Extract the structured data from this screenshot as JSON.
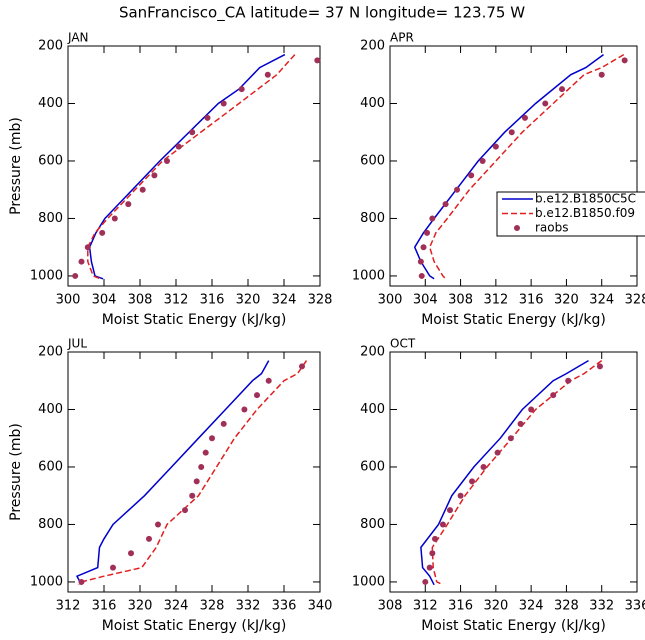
{
  "title": "SanFrancisco_CA  latitude= 37 N longitude= 123.75 W",
  "chart_data": [
    {
      "type": "line",
      "panel": "JAN",
      "xlabel": "Moist Static Energy (kJ/kg)",
      "ylabel": "Pressure (mb)",
      "xlim": [
        300,
        328
      ],
      "xticks": [
        300,
        304,
        308,
        312,
        316,
        320,
        324,
        328
      ],
      "ylim": [
        1035,
        200
      ],
      "yticks": [
        200,
        400,
        600,
        800,
        1000
      ],
      "series": [
        {
          "color": "#0000cc",
          "style": "solid",
          "levels": [
            230,
            275,
            350,
            400,
            600,
            800,
            850,
            900,
            950,
            1000,
            1010
          ],
          "values": [
            324.1,
            321.3,
            319,
            316.7,
            310.2,
            304.1,
            303.1,
            302.4,
            302.6,
            303,
            303.9
          ]
        },
        {
          "color": "#e02020",
          "style": "dashed",
          "levels": [
            230,
            300,
            400,
            600,
            800,
            850,
            900,
            950,
            1000,
            1010
          ],
          "values": [
            325.2,
            323.2,
            319,
            310.5,
            304.4,
            303,
            302.2,
            302.2,
            302.8,
            303.6
          ]
        },
        {
          "color": "#a03058",
          "style": "dots",
          "levels": [
            250,
            300,
            350,
            400,
            450,
            500,
            550,
            600,
            650,
            700,
            750,
            800,
            850,
            900,
            950,
            1000
          ],
          "values": [
            327.7,
            322.2,
            319.3,
            317.3,
            315.5,
            313.8,
            312.3,
            311,
            309.6,
            308.3,
            306.7,
            305.2,
            303.8,
            302.2,
            301.5,
            300.8
          ]
        }
      ]
    },
    {
      "type": "line",
      "panel": "APR",
      "xlabel": "Moist Static Energy (kJ/kg)",
      "xlim": [
        300,
        328
      ],
      "xticks": [
        300,
        304,
        308,
        312,
        316,
        320,
        324,
        328
      ],
      "ylim": [
        1035,
        200
      ],
      "yticks": [
        200,
        400,
        600,
        800,
        1000
      ],
      "legend": "right",
      "series": [
        {
          "name": "b.e12.B1850C5C",
          "color": "#0000cc",
          "style": "solid",
          "levels": [
            230,
            275,
            300,
            400,
            500,
            600,
            700,
            800,
            850,
            900,
            950,
            1000,
            1010
          ],
          "values": [
            324.2,
            322.2,
            320.5,
            316.5,
            313,
            310,
            307.5,
            305,
            303.8,
            302.8,
            303.5,
            304.5,
            305
          ]
        },
        {
          "name": "b.e12.B1850.f09",
          "color": "#e02020",
          "style": "dashed",
          "levels": [
            230,
            275,
            300,
            400,
            500,
            600,
            700,
            800,
            850,
            900,
            950,
            1000,
            1010
          ],
          "values": [
            326.5,
            324,
            322,
            318.5,
            315,
            312,
            309,
            306.5,
            305.2,
            304.5,
            305,
            306,
            306.3
          ]
        },
        {
          "name": "raobs",
          "color": "#a03058",
          "style": "dots",
          "levels": [
            250,
            300,
            350,
            400,
            450,
            500,
            550,
            600,
            650,
            700,
            750,
            800,
            850,
            900,
            950,
            1000
          ],
          "values": [
            326.6,
            324,
            319.5,
            317.6,
            315.3,
            313.8,
            312,
            310.5,
            309.2,
            307.6,
            306.3,
            304.8,
            304.2,
            303.8,
            303.5,
            303.6
          ]
        }
      ]
    },
    {
      "type": "line",
      "panel": "JUL",
      "xlabel": "Moist Static Energy (kJ/kg)",
      "ylabel": "Pressure (mb)",
      "xlim": [
        312,
        340
      ],
      "xticks": [
        312,
        316,
        320,
        324,
        328,
        332,
        336,
        340
      ],
      "ylim": [
        1035,
        200
      ],
      "yticks": [
        200,
        400,
        600,
        800,
        1000
      ],
      "series": [
        {
          "color": "#0000cc",
          "style": "solid",
          "levels": [
            230,
            275,
            300,
            400,
            500,
            600,
            700,
            800,
            850,
            880,
            950,
            980,
            1010
          ],
          "values": [
            334.3,
            333.5,
            332.5,
            329.5,
            326.5,
            323.5,
            320.5,
            317,
            316,
            315.5,
            315.3,
            313,
            313.5
          ]
        },
        {
          "color": "#e02020",
          "style": "dashed",
          "levels": [
            230,
            275,
            300,
            400,
            500,
            600,
            700,
            800,
            880,
            950,
            980,
            1000,
            1010
          ],
          "values": [
            338.5,
            337.5,
            336,
            333,
            330.5,
            328.5,
            326.5,
            323,
            321.8,
            320.2,
            316,
            313.5,
            313.2
          ]
        },
        {
          "color": "#a03058",
          "style": "dots",
          "levels": [
            250,
            300,
            350,
            400,
            450,
            500,
            550,
            600,
            650,
            700,
            750,
            800,
            850,
            900,
            950,
            1000
          ],
          "values": [
            338,
            334.3,
            333,
            331.6,
            329.3,
            328,
            327.3,
            326.8,
            326.3,
            325.8,
            325,
            322,
            321,
            319,
            317,
            313.5
          ]
        }
      ]
    },
    {
      "type": "line",
      "panel": "OCT",
      "xlabel": "Moist Static Energy (kJ/kg)",
      "xlim": [
        308,
        336
      ],
      "xticks": [
        308,
        312,
        316,
        320,
        324,
        328,
        332,
        336
      ],
      "ylim": [
        1035,
        200
      ],
      "yticks": [
        200,
        400,
        600,
        800,
        1000
      ],
      "series": [
        {
          "color": "#0000cc",
          "style": "solid",
          "levels": [
            230,
            275,
            300,
            400,
            500,
            600,
            700,
            800,
            880,
            950,
            980,
            1010
          ],
          "values": [
            330.5,
            328,
            326.5,
            323,
            320.5,
            317.5,
            315,
            313.5,
            311.5,
            311.7,
            312.5,
            313
          ]
        },
        {
          "color": "#e02020",
          "style": "dashed",
          "levels": [
            230,
            275,
            300,
            400,
            500,
            600,
            700,
            800,
            880,
            950,
            1000,
            1010
          ],
          "values": [
            332,
            330,
            328.5,
            324.5,
            321.8,
            319,
            316.5,
            314.5,
            312.8,
            312.9,
            313.3,
            314
          ]
        },
        {
          "color": "#a03058",
          "style": "dots",
          "levels": [
            250,
            300,
            350,
            400,
            450,
            500,
            550,
            600,
            650,
            700,
            750,
            800,
            850,
            900,
            950,
            1000
          ],
          "values": [
            331.8,
            328.2,
            326.5,
            324,
            322.8,
            321.7,
            320.2,
            318.6,
            317.3,
            316,
            314.8,
            314,
            313.1,
            312.8,
            312.5,
            312
          ]
        }
      ]
    }
  ]
}
